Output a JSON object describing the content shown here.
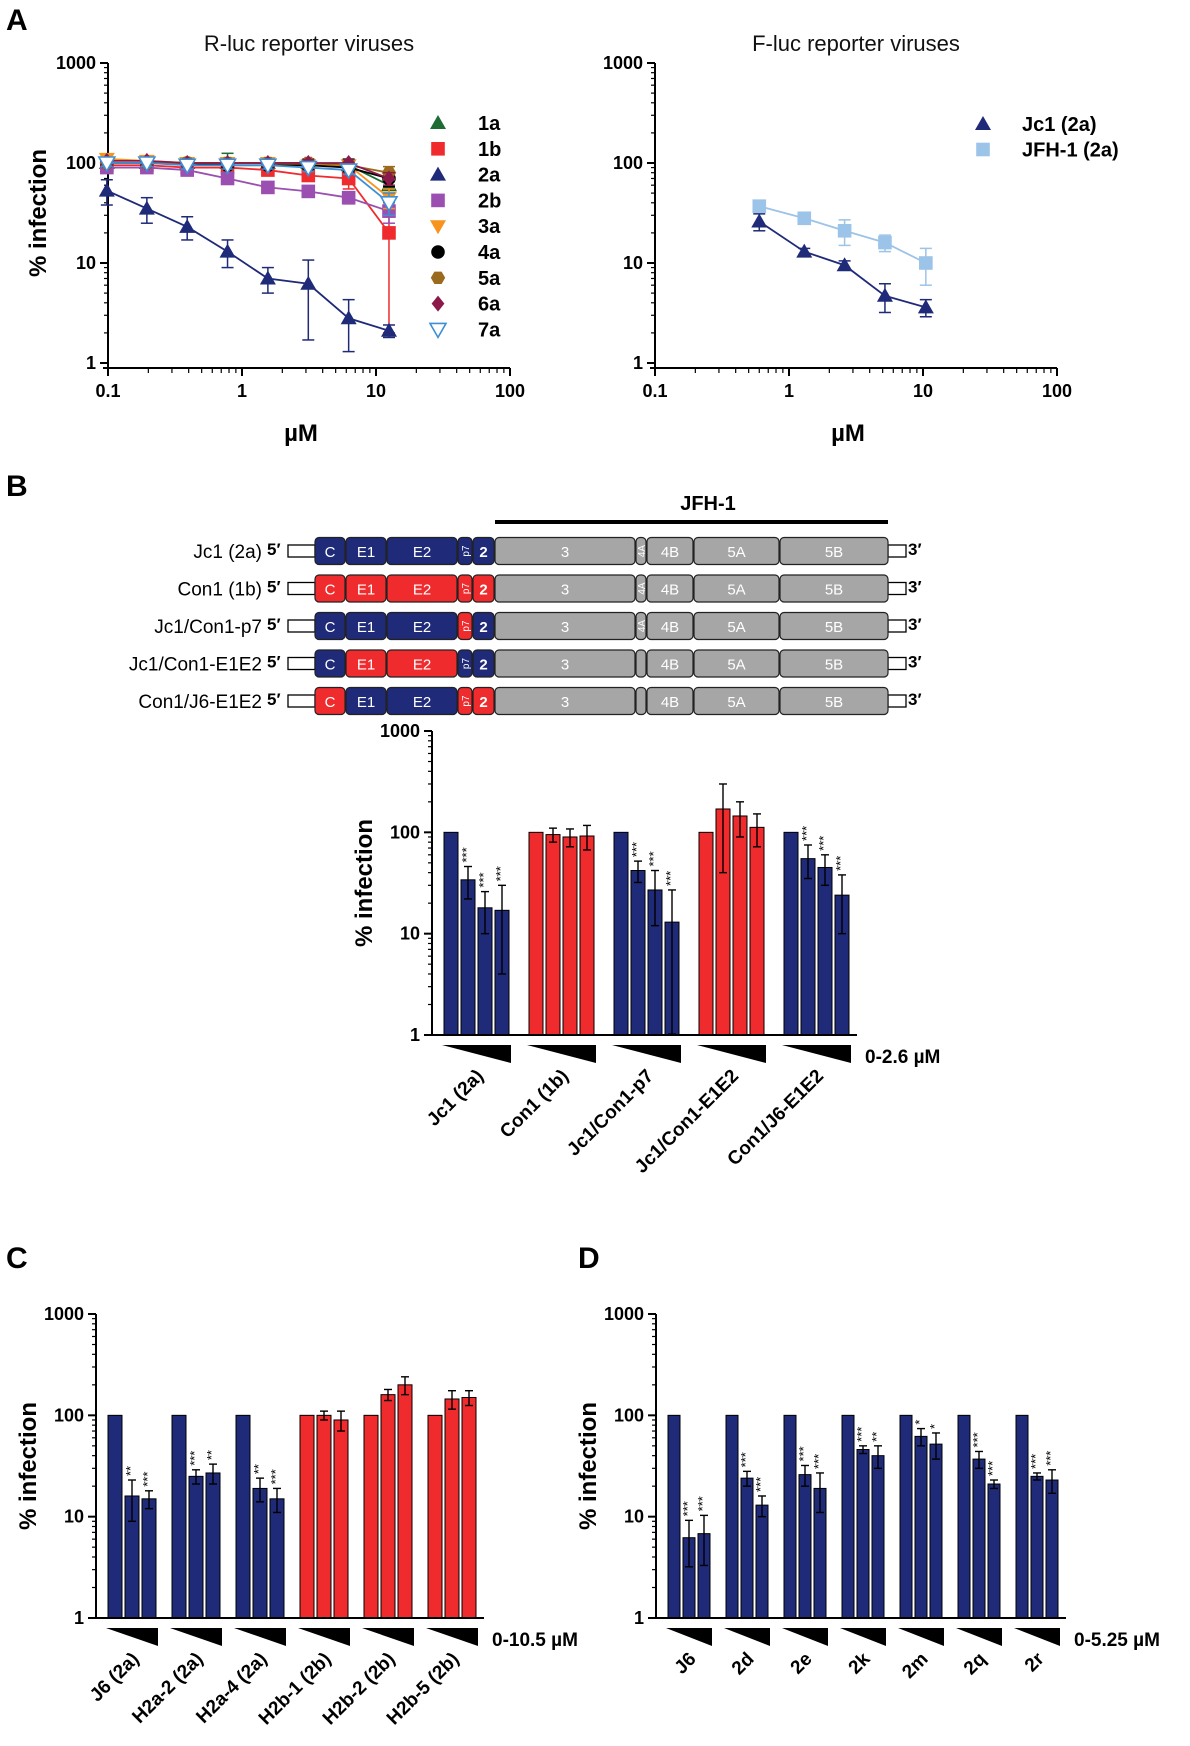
{
  "panels": {
    "a": "A",
    "b": "B",
    "c": "C",
    "d": "D"
  },
  "colors": {
    "navy": "#1f2a78",
    "red": "#ef2b2d",
    "gray": "#a6a6a6",
    "green": "#1e6b34",
    "purple": "#9b4fb0",
    "orange": "#f7941d",
    "black": "#000000",
    "brown": "#9a6a1e",
    "magenta": "#8b1a4a",
    "lightblue": "#3e8fd6",
    "jfh": "#9cc3e8"
  },
  "chart_data": [
    {
      "id": "A-left",
      "type": "line",
      "title": "R-luc reporter viruses",
      "xlabel": "µM",
      "ylabel": "% infection",
      "xscale": "log",
      "yscale": "log",
      "xlim": [
        0.1,
        100
      ],
      "ylim": [
        1,
        1000
      ],
      "xticks": [
        "0.1",
        "1",
        "10",
        "100"
      ],
      "yticks": [
        "1",
        "10",
        "100",
        "1000"
      ],
      "legend": "right",
      "x": [
        0.098,
        0.195,
        0.39,
        0.78,
        1.56,
        3.125,
        6.25,
        12.5
      ],
      "series": [
        {
          "name": "1a",
          "color": "#1e6b34",
          "marker": "triangle",
          "values": [
            100,
            100,
            100,
            100,
            100,
            100,
            95,
            60
          ],
          "err": [
            8,
            12,
            10,
            25,
            10,
            10,
            15,
            20
          ]
        },
        {
          "name": "1b",
          "color": "#ef2b2d",
          "marker": "square",
          "values": [
            95,
            95,
            90,
            90,
            85,
            75,
            70,
            20
          ],
          "err": [
            8,
            8,
            8,
            8,
            8,
            8,
            15,
            18
          ]
        },
        {
          "name": "2a",
          "color": "#1f2a78",
          "marker": "triangle",
          "values": [
            53,
            35,
            23,
            13,
            7,
            6.2,
            2.8,
            2.1
          ],
          "err": [
            15,
            10,
            6,
            4,
            2,
            4.5,
            1.5,
            0.3
          ]
        },
        {
          "name": "2b",
          "color": "#9b4fb0",
          "marker": "square",
          "values": [
            90,
            90,
            85,
            70,
            57,
            52,
            45,
            33
          ],
          "err": [
            8,
            8,
            8,
            8,
            6,
            6,
            6,
            8
          ]
        },
        {
          "name": "3a",
          "color": "#f7941d",
          "marker": "triangle-down",
          "values": [
            110,
            105,
            100,
            100,
            100,
            95,
            95,
            45
          ],
          "err": [
            10,
            8,
            8,
            8,
            8,
            8,
            8,
            10
          ]
        },
        {
          "name": "4a",
          "color": "#000000",
          "marker": "circle",
          "values": [
            100,
            100,
            100,
            95,
            95,
            95,
            90,
            70
          ],
          "err": [
            8,
            8,
            8,
            8,
            8,
            8,
            8,
            12
          ]
        },
        {
          "name": "5a",
          "color": "#9a6a1e",
          "marker": "hexagon",
          "values": [
            100,
            100,
            100,
            100,
            100,
            100,
            95,
            80
          ],
          "err": [
            8,
            8,
            8,
            8,
            8,
            8,
            8,
            12
          ]
        },
        {
          "name": "6a",
          "color": "#8b1a4a",
          "marker": "diamond",
          "values": [
            105,
            105,
            100,
            100,
            100,
            100,
            100,
            70
          ],
          "err": [
            8,
            8,
            8,
            8,
            8,
            8,
            8,
            10
          ]
        },
        {
          "name": "7a",
          "color": "#3e8fd6",
          "marker": "triangle-down-open",
          "values": [
            100,
            100,
            95,
            95,
            95,
            90,
            85,
            40
          ],
          "err": [
            8,
            8,
            8,
            8,
            8,
            8,
            8,
            10
          ]
        }
      ]
    },
    {
      "id": "A-right",
      "type": "line",
      "title": "F-luc reporter viruses",
      "xlabel": "µM",
      "ylabel": "",
      "xscale": "log",
      "yscale": "log",
      "xlim": [
        0.1,
        100
      ],
      "ylim": [
        1,
        1000
      ],
      "xticks": [
        "0.1",
        "1",
        "10",
        "100"
      ],
      "yticks": [
        "1",
        "10",
        "100",
        "1000"
      ],
      "legend": "top-right",
      "series": [
        {
          "name": "Jc1 (2a)",
          "color": "#1f2a78",
          "marker": "triangle",
          "x": [
            0.6,
            1.3,
            2.6,
            5.2,
            10.5
          ],
          "values": [
            26,
            13,
            9.5,
            4.7,
            3.6
          ],
          "err": [
            5,
            1,
            1,
            1.5,
            0.7
          ]
        },
        {
          "name": "JFH-1 (2a)",
          "color": "#9cc3e8",
          "marker": "square",
          "x": [
            0.6,
            1.3,
            2.6,
            5.2,
            10.5
          ],
          "values": [
            37,
            28,
            21,
            16,
            10
          ],
          "err": [
            3,
            3,
            6,
            3,
            4
          ]
        }
      ]
    },
    {
      "id": "B",
      "type": "bar",
      "yscale": "log",
      "ylim": [
        1,
        1000
      ],
      "ylabel": "% infection",
      "yticks": [
        "1",
        "10",
        "100",
        "1000"
      ],
      "dose": "0-2.6 µM",
      "groups": [
        {
          "label": "Jc1 (2a)",
          "color": "#1f2a78",
          "values": [
            100,
            34,
            18,
            17
          ],
          "err": [
            0,
            12,
            8,
            13
          ],
          "stars": [
            "",
            "***",
            "***",
            "***"
          ]
        },
        {
          "label": "Con1 (1b)",
          "color": "#ef2b2d",
          "values": [
            100,
            95,
            90,
            92
          ],
          "err": [
            0,
            15,
            18,
            25
          ],
          "stars": [
            "",
            "",
            "",
            ""
          ]
        },
        {
          "label": "Jc1/Con1-p7",
          "color": "#1f2a78",
          "values": [
            100,
            42,
            27,
            13
          ],
          "err": [
            0,
            10,
            15,
            14
          ],
          "stars": [
            "",
            "***",
            "***",
            "***"
          ]
        },
        {
          "label": "Jc1/Con1-E1E2",
          "color": "#ef2b2d",
          "values": [
            100,
            170,
            145,
            112
          ],
          "err": [
            0,
            130,
            55,
            40
          ],
          "stars": [
            "",
            "",
            "",
            ""
          ]
        },
        {
          "label": "Con1/J6-E1E2",
          "color": "#1f2a78",
          "values": [
            100,
            55,
            45,
            24
          ],
          "err": [
            0,
            20,
            15,
            14
          ],
          "stars": [
            "",
            "***",
            "***",
            "***"
          ]
        }
      ]
    },
    {
      "id": "C",
      "type": "bar",
      "yscale": "log",
      "ylim": [
        1,
        1000
      ],
      "ylabel": "% infection",
      "yticks": [
        "1",
        "10",
        "100",
        "1000"
      ],
      "dose": "0-10.5 µM",
      "groups": [
        {
          "label": "J6 (2a)",
          "color": "#1f2a78",
          "values": [
            100,
            16,
            15
          ],
          "err": [
            0,
            7,
            3
          ],
          "stars": [
            "",
            "**",
            "***"
          ]
        },
        {
          "label": "H2a-2 (2a)",
          "color": "#1f2a78",
          "values": [
            100,
            25,
            27
          ],
          "err": [
            0,
            4,
            6
          ],
          "stars": [
            "",
            "***",
            "**"
          ]
        },
        {
          "label": "H2a-4 (2a)",
          "color": "#1f2a78",
          "values": [
            100,
            19,
            15
          ],
          "err": [
            0,
            5,
            4
          ],
          "stars": [
            "",
            "**",
            "***"
          ]
        },
        {
          "label": "H2b-1 (2b)",
          "color": "#ef2b2d",
          "values": [
            100,
            100,
            90
          ],
          "err": [
            0,
            10,
            20
          ],
          "stars": [
            "",
            "",
            ""
          ]
        },
        {
          "label": "H2b-2 (2b)",
          "color": "#ef2b2d",
          "values": [
            100,
            160,
            200
          ],
          "err": [
            0,
            20,
            40
          ],
          "stars": [
            "",
            "",
            ""
          ]
        },
        {
          "label": "H2b-5 (2b)",
          "color": "#ef2b2d",
          "values": [
            100,
            145,
            150
          ],
          "err": [
            0,
            30,
            25
          ],
          "stars": [
            "",
            "",
            ""
          ]
        }
      ]
    },
    {
      "id": "D",
      "type": "bar",
      "yscale": "log",
      "ylim": [
        1,
        1000
      ],
      "ylabel": "% infection",
      "yticks": [
        "1",
        "10",
        "100",
        "1000"
      ],
      "dose": "0-5.25 µM",
      "groups": [
        {
          "label": "J6",
          "color": "#1f2a78",
          "values": [
            100,
            6.2,
            6.8
          ],
          "err": [
            0,
            3,
            3.5
          ],
          "stars": [
            "",
            "***",
            "***"
          ]
        },
        {
          "label": "2d",
          "color": "#1f2a78",
          "values": [
            100,
            24,
            13
          ],
          "err": [
            0,
            4,
            3
          ],
          "stars": [
            "",
            "***",
            "***"
          ]
        },
        {
          "label": "2e",
          "color": "#1f2a78",
          "values": [
            100,
            26,
            19
          ],
          "err": [
            0,
            6,
            8
          ],
          "stars": [
            "",
            "***",
            "***"
          ]
        },
        {
          "label": "2k",
          "color": "#1f2a78",
          "values": [
            100,
            46,
            40
          ],
          "err": [
            0,
            4,
            10
          ],
          "stars": [
            "",
            "***",
            "**"
          ]
        },
        {
          "label": "2m",
          "color": "#1f2a78",
          "values": [
            100,
            62,
            52
          ],
          "err": [
            0,
            12,
            15
          ],
          "stars": [
            "",
            "*",
            "*"
          ]
        },
        {
          "label": "2q",
          "color": "#1f2a78",
          "values": [
            100,
            37,
            21
          ],
          "err": [
            0,
            7,
            2
          ],
          "stars": [
            "",
            "***",
            "***"
          ]
        },
        {
          "label": "2r",
          "color": "#1f2a78",
          "values": [
            100,
            25,
            23
          ],
          "err": [
            0,
            2,
            6
          ],
          "stars": [
            "",
            "***",
            "***"
          ]
        }
      ]
    }
  ],
  "schematic": {
    "title": "JFH-1",
    "five": "5′",
    "three": "3′",
    "constructs": [
      {
        "name": "Jc1 (2a)",
        "C": "navy",
        "E1": "navy",
        "E2": "navy",
        "p7": "navy",
        "NS2": "navy",
        "lab4A": true
      },
      {
        "name": "Con1 (1b)",
        "C": "red",
        "E1": "red",
        "E2": "red",
        "p7": "red",
        "NS2": "red",
        "lab4A": true
      },
      {
        "name": "Jc1/Con1-p7",
        "C": "navy",
        "E1": "navy",
        "E2": "navy",
        "p7": "red",
        "NS2": "navy",
        "lab4A": true
      },
      {
        "name": "Jc1/Con1-E1E2",
        "C": "navy",
        "E1": "red",
        "E2": "red",
        "p7": "navy",
        "NS2": "navy",
        "lab4A": false
      },
      {
        "name": "Con1/J6-E1E2",
        "C": "red",
        "E1": "navy",
        "E2": "navy",
        "p7": "red",
        "NS2": "red",
        "lab4A": false
      }
    ],
    "segments": {
      "C": "C",
      "E1": "E1",
      "E2": "E2",
      "p7": "p7",
      "NS2": "2",
      "NS3": "3",
      "NS4A": "4A",
      "NS4B": "4B",
      "NS5A": "5A",
      "NS5B": "5B"
    }
  }
}
